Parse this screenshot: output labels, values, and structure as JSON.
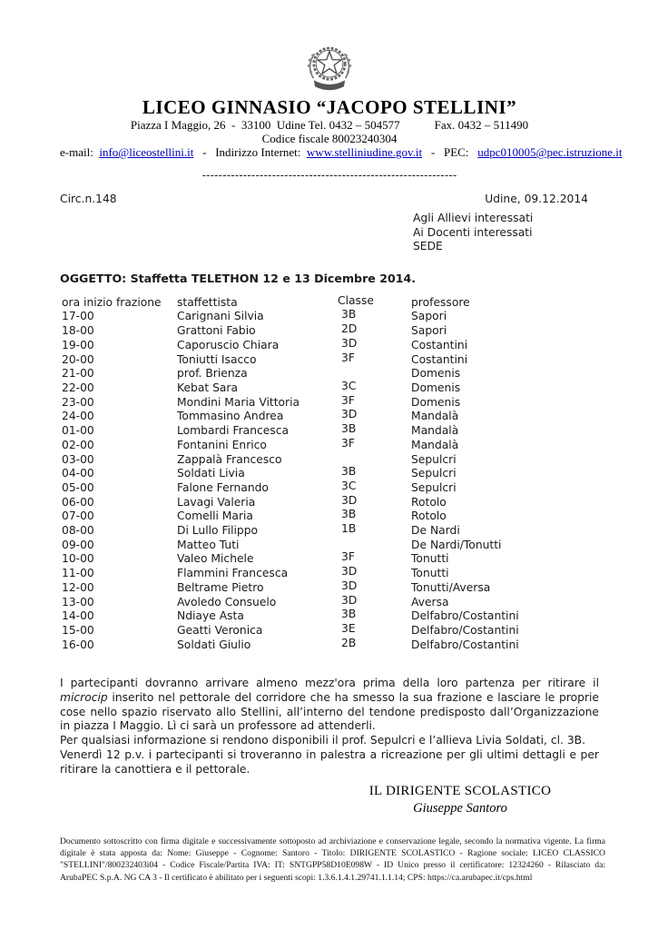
{
  "colors": {
    "link": "#0000bb",
    "text": "#1a1a1a",
    "background": "#ffffff"
  },
  "emblem": {
    "icon": "italian-republic-emblem-icon"
  },
  "header": {
    "school_name": "LICEO GINNASIO “JACOPO STELLINI”",
    "address": "Piazza I Maggio, 26  -  33100  Udine Tel. 0432 – 504577",
    "fax": "Fax. 0432 – 511490",
    "fiscal_line": "Codice fiscale 80023240304",
    "email_label": "e-mail:  ",
    "email": "info@liceostellini.it",
    "internet_label": "   -   Indirizzo Internet:  ",
    "website": "www.stelliniudine.gov.it",
    "pec_label": "   -   PEC:   ",
    "pec": "udpc010005@pec.istruzione.it",
    "separator": "--------------------------------------------------------------"
  },
  "meta": {
    "circular_number": "Circ.n.148",
    "place_date": "Udine, 09.12.2014"
  },
  "recipients": [
    "Agli Allievi interessati",
    "Ai Docenti interessati",
    "SEDE"
  ],
  "subject": "OGGETTO: Staffetta TELETHON 12 e 13 Dicembre 2014.",
  "table": {
    "headers": [
      "ora inizio frazione",
      "staffettista",
      "Classe",
      "professore"
    ],
    "rows": [
      [
        "17-00",
        "Carignani Silvia",
        "3B",
        "Sapori"
      ],
      [
        "18-00",
        "Grattoni Fabio",
        "2D",
        "Sapori"
      ],
      [
        "19-00",
        "Caporuscio Chiara",
        "3D",
        "Costantini"
      ],
      [
        "20-00",
        "Toniutti Isacco",
        "3F",
        "Costantini"
      ],
      [
        "21-00",
        "prof. Brienza",
        "",
        "Domenis"
      ],
      [
        "22-00",
        "Kebat Sara",
        "3C",
        "Domenis"
      ],
      [
        "23-00",
        "Mondini Maria Vittoria",
        "3F",
        "Domenis"
      ],
      [
        "24-00",
        "Tommasino Andrea",
        "3D",
        "Mandalà"
      ],
      [
        "01-00",
        "Lombardi Francesca",
        "3B",
        "Mandalà"
      ],
      [
        "02-00",
        "Fontanini Enrico",
        "3F",
        "Mandalà"
      ],
      [
        "03-00",
        "Zappalà Francesco",
        "",
        "Sepulcri"
      ],
      [
        "04-00",
        "Soldati Livia",
        "3B",
        "Sepulcri"
      ],
      [
        "05-00",
        "Falone Fernando",
        "3C",
        "Sepulcri"
      ],
      [
        "06-00",
        "Lavagi Valeria",
        "3D",
        "Rotolo"
      ],
      [
        "07-00",
        "Comelli Maria",
        "3B",
        "Rotolo"
      ],
      [
        "08-00",
        "Di Lullo Filippo",
        "1B",
        "De Nardi"
      ],
      [
        "09-00",
        "Matteo Tuti",
        "",
        "De Nardi/Tonutti"
      ],
      [
        "10-00",
        "Valeo Michele",
        "3F",
        "Tonutti"
      ],
      [
        "11-00",
        "Flammini Francesca",
        "3D",
        "Tonutti"
      ],
      [
        "12-00",
        "Beltrame Pietro",
        "3D",
        "Tonutti/Aversa"
      ],
      [
        "13-00",
        "Avoledo Consuelo",
        "3D",
        "Aversa"
      ],
      [
        "14-00",
        "Ndiaye Asta",
        "3B",
        "Delfabro/Costantini"
      ],
      [
        "15-00",
        "Geatti Veronica",
        "3E",
        "Delfabro/Costantini"
      ],
      [
        "16-00",
        "Soldati Giulio",
        "2B",
        "Delfabro/Costantini"
      ]
    ]
  },
  "body": {
    "para1_before": "I partecipanti dovranno arrivare almeno mezz'ora prima della loro partenza per ritirare il",
    "para1_italic": "microcip",
    "para1_after": "inserito nel pettorale del corridore che ha smesso la sua frazione e lasciare le proprie cose nello spazio riservato allo Stellini, all’interno del tendone predisposto dall’Organizzazione in piazza I Maggio. Lì ci sarà un professore ad attenderli.",
    "para2": "Per qualsiasi informazione si rendono disponibili il prof. Sepulcri e l’allieva Livia Soldati, cl. 3B.",
    "para3": "Venerdì 12 p.v. i partecipanti si troveranno in palestra a ricreazione per gli ultimi dettagli e per ritirare la canottiera e il pettorale."
  },
  "signature": {
    "role": "IL DIRIGENTE SCOLASTICO",
    "name": "Giuseppe Santoro"
  },
  "footer": {
    "text": "Documento sottoscritto con firma digitale e successivamente sottoposto ad archiviazione e conservazione legale, secondo la normativa vigente. La firma digitale è stata apposta da: Nome: Giuseppe - Cognome: Santoro - Titolo: DIRIGENTE SCOLASTICO - Ragione sociale: LICEO CLASSICO \"STELLINI\"/800232403ì04 - Codice Fiscale/Partita IVA: IT: SNTGPP58D10E098W - ID Unico presso il certificatore: 12324260 - Rilasciato da: ArubaPEC S.p.A. NG CA 3 - Il certificato è abilitato per i seguenti scopi: 1.3.6.1.4.1.29741.1.1.14; CPS: https://ca.arubapec.it/cps.html"
  }
}
